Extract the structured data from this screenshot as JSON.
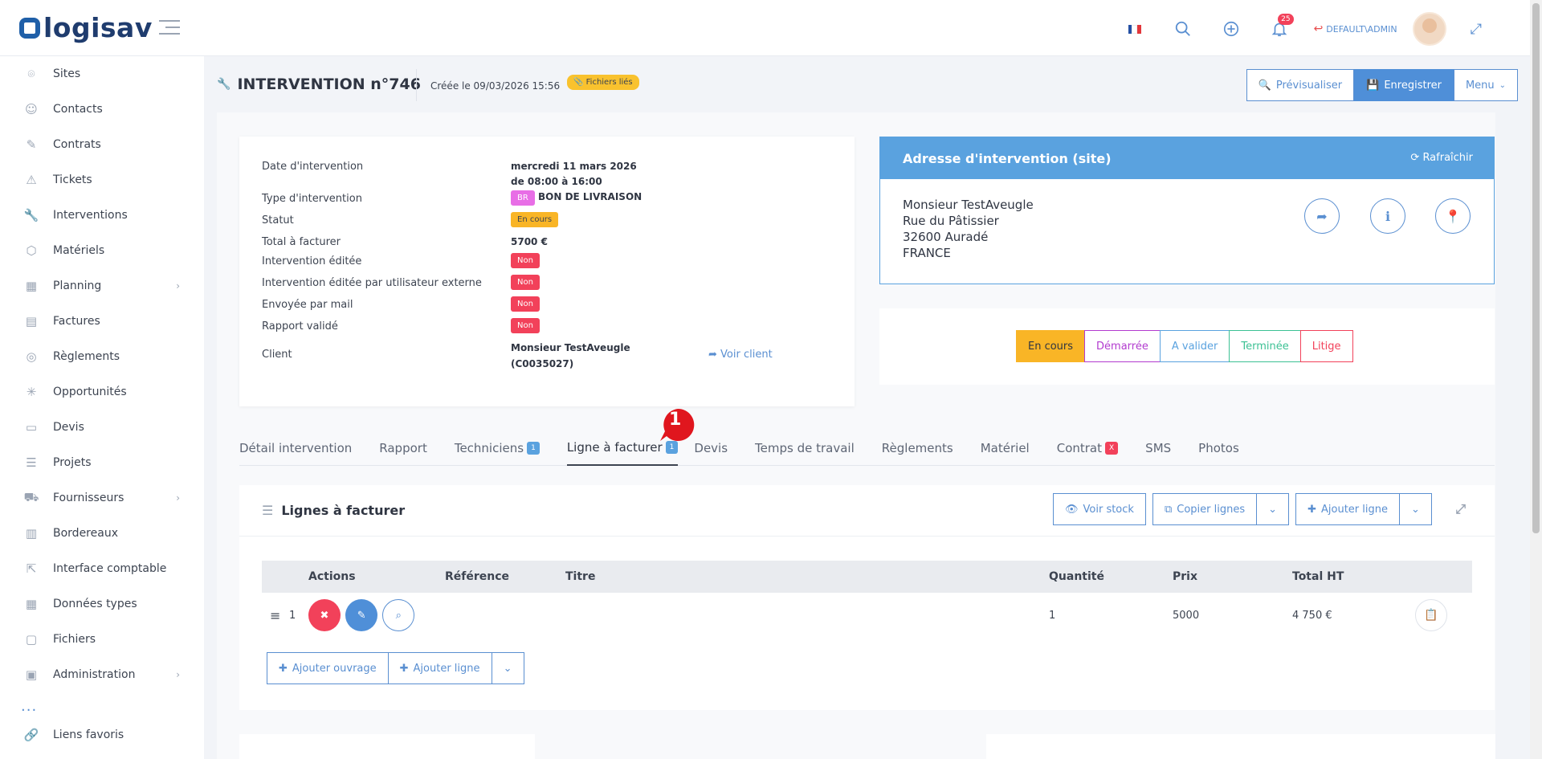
{
  "header": {
    "logo": "logisav",
    "notifications_count": "25",
    "user": "DEFAULT\\ADMIN"
  },
  "sidebar": {
    "items": [
      {
        "label": "Sites",
        "icon": "map-pin-icon"
      },
      {
        "label": "Contacts",
        "icon": "user-circle-icon"
      },
      {
        "label": "Contrats",
        "icon": "contract-icon"
      },
      {
        "label": "Tickets",
        "icon": "warning-icon"
      },
      {
        "label": "Interventions",
        "icon": "wrench-icon"
      },
      {
        "label": "Matériels",
        "icon": "cube-icon"
      },
      {
        "label": "Planning",
        "icon": "calendar-icon",
        "has_sub": true
      },
      {
        "label": "Factures",
        "icon": "invoice-icon"
      },
      {
        "label": "Règlements",
        "icon": "coins-icon"
      },
      {
        "label": "Opportunités",
        "icon": "network-icon"
      },
      {
        "label": "Devis",
        "icon": "folder-icon"
      },
      {
        "label": "Projets",
        "icon": "list-icon"
      },
      {
        "label": "Fournisseurs",
        "icon": "truck-icon",
        "has_sub": true
      },
      {
        "label": "Bordereaux",
        "icon": "stack-icon"
      },
      {
        "label": "Interface comptable",
        "icon": "external-link-icon"
      },
      {
        "label": "Données types",
        "icon": "grid-icon"
      },
      {
        "label": "Fichiers",
        "icon": "file-icon"
      },
      {
        "label": "Administration",
        "icon": "admin-icon",
        "has_sub": true
      }
    ],
    "more": "...",
    "favorites": "Liens favoris"
  },
  "page": {
    "title": "INTERVENTION n°746",
    "created": "Créée le 09/03/2026 15:56",
    "files_chip": "Fichiers liés",
    "preview_btn": "Prévisualiser",
    "save_btn": "Enregistrer",
    "menu_btn": "Menu"
  },
  "info": {
    "date_label": "Date d'intervention",
    "date_value_1": "mercredi 11 mars 2026",
    "date_value_2": "de 08:00 à 16:00",
    "type_label": "Type d'intervention",
    "type_badge": "BR",
    "type_value": "BON DE LIVRAISON",
    "status_label": "Statut",
    "status_value": "En cours",
    "total_label": "Total à facturer",
    "total_value": "5700 €",
    "edited_label": "Intervention éditée",
    "edited_value": "Non",
    "edited_ext_label": "Intervention éditée par utilisateur externe",
    "edited_ext_value": "Non",
    "mail_label": "Envoyée par mail",
    "mail_value": "Non",
    "report_label": "Rapport validé",
    "report_value": "Non",
    "client_label": "Client",
    "client_value_1": "Monsieur TestAveugle",
    "client_value_2": "(C0035027)",
    "voir_client": "Voir client"
  },
  "address": {
    "title": "Adresse d'intervention (site)",
    "refresh": "Rafraîchir",
    "lines": [
      "Monsieur TestAveugle",
      "Rue du Pâtissier",
      "32600 Auradé",
      "FRANCE"
    ]
  },
  "statuses": [
    {
      "label": "En cours",
      "color": "#f9b526",
      "active": true
    },
    {
      "label": "Démarrée",
      "color": "#b23bcf"
    },
    {
      "label": "A valider",
      "color": "#5aa2df"
    },
    {
      "label": "Terminée",
      "color": "#3cc194"
    },
    {
      "label": "Litige",
      "color": "#f2415a"
    }
  ],
  "tabs": [
    {
      "label": "Détail intervention"
    },
    {
      "label": "Rapport"
    },
    {
      "label": "Techniciens",
      "badge": "1",
      "badge_color": "#5aa2df"
    },
    {
      "label": "Ligne à facturer",
      "badge": "1",
      "badge_color": "#5aa2df",
      "active": true
    },
    {
      "label": "Devis"
    },
    {
      "label": "Temps de travail"
    },
    {
      "label": "Règlements"
    },
    {
      "label": "Matériel"
    },
    {
      "label": "Contrat",
      "badge": "X",
      "badge_color": "#f2415a"
    },
    {
      "label": "SMS"
    },
    {
      "label": "Photos"
    }
  ],
  "marker": "1",
  "lines": {
    "title": "Lignes à facturer",
    "voir_stock": "Voir stock",
    "copier_lignes": "Copier lignes",
    "ajouter_ligne": "Ajouter ligne",
    "columns": [
      "Actions",
      "Référence",
      "Titre",
      "Quantité",
      "Prix",
      "Total HT"
    ],
    "rows": [
      {
        "num": "1",
        "reference": "",
        "titre": "",
        "quantite": "1",
        "prix": "5000",
        "total": "4 750 €"
      }
    ],
    "add_ouvrage": "Ajouter ouvrage",
    "add_ligne": "Ajouter ligne"
  }
}
